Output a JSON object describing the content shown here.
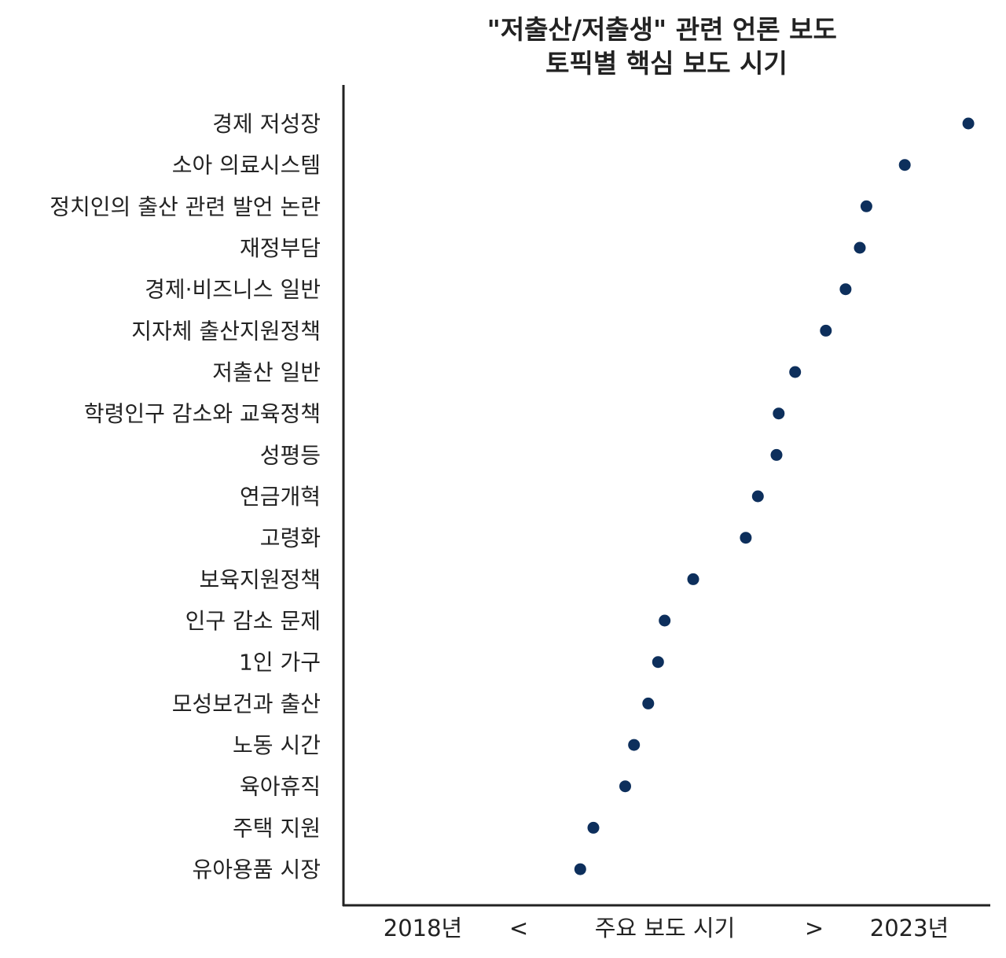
{
  "chart_data": {
    "type": "scatter",
    "title": "\"저출산/저출생\" 관련 언론 보도\n토픽별 핵심 보도 시기",
    "xlabel": "주요 보도 시기",
    "ylabel": "",
    "x_axis_text": {
      "start": "2018년",
      "left_arrow": "<",
      "middle": "주요 보도 시기",
      "right_arrow": ">",
      "end": "2023년"
    },
    "categories": [
      "경제 저성장",
      "소아 의료시스템",
      "정치인의 출산 관련 발언 논란",
      "재정부담",
      "경제·비즈니스 일반",
      "지자체 출산지원정책",
      "저출산 일반",
      "학령인구 감소와 교육정책",
      "성평등",
      "연금개혁",
      "고령화",
      "보육지원정책",
      "인구 감소 문제",
      "1인 가구",
      "모성보건과 출산",
      "노동 시간",
      "육아휴직",
      "주택 지원",
      "유아용품 시장"
    ],
    "values": [
      2023.53,
      2022.95,
      2022.6,
      2022.54,
      2022.41,
      2022.23,
      2021.95,
      2021.8,
      2021.78,
      2021.61,
      2021.5,
      2021.02,
      2020.76,
      2020.7,
      2020.61,
      2020.48,
      2020.4,
      2020.11,
      2019.99
    ],
    "xlim": [
      2017.83,
      2023.73
    ],
    "x_ticks_shown": false,
    "grid": false,
    "legend": "none",
    "marker_color": "#0d2f5c"
  }
}
